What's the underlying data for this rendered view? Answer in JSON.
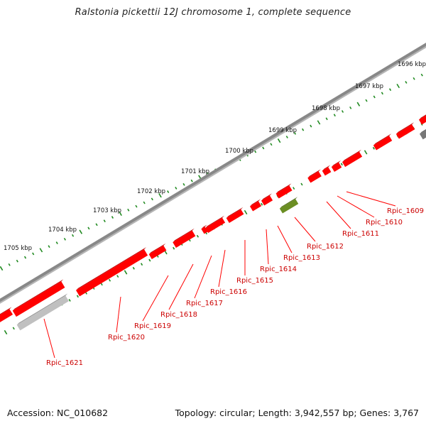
{
  "title": "Ralstonia pickettii 12J chromosome 1, complete sequence",
  "footer": {
    "accession": "Accession: NC_010682",
    "topology": "Topology: circular; Length: 3,942,557 bp; Genes: 3,767"
  },
  "ruler": {
    "labels": [
      "1696 kbp",
      "1697 kbp",
      "1698 kbp",
      "1699 kbp",
      "1700 kbp",
      "1701 kbp",
      "1702 kbp",
      "1703 kbp",
      "1704 kbp",
      "1705 kbp"
    ]
  },
  "genes": [
    {
      "label": "Rpic_1609",
      "color": "#ff0000"
    },
    {
      "label": "Rpic_1610",
      "color": "#ff0000"
    },
    {
      "label": "Rpic_1611",
      "color": "#ff0000"
    },
    {
      "label": "Rpic_1612",
      "color": "#ff0000"
    },
    {
      "label": "Rpic_1613",
      "color": "#6b8e23"
    },
    {
      "label": "Rpic_1614",
      "color": "#ff0000"
    },
    {
      "label": "Rpic_1615",
      "color": "#ff0000"
    },
    {
      "label": "Rpic_1616",
      "color": "#ff0000"
    },
    {
      "label": "Rpic_1617",
      "color": "#ff0000"
    },
    {
      "label": "Rpic_1618",
      "color": "#ff0000"
    },
    {
      "label": "Rpic_1619",
      "color": "#ff0000"
    },
    {
      "label": "Rpic_1620",
      "color": "#ff0000"
    },
    {
      "label": "Rpic_1621",
      "color": "#c0c0c0"
    }
  ],
  "colors": {
    "backbone": "#888888",
    "ruler_ticks": "#228b22",
    "label_text": "#cc0000",
    "leader_line": "#ff0000",
    "gene_forward": "#ff0000",
    "gene_grey": "#c0c0c0",
    "gene_olive": "#6b8e23",
    "gene_dark": "#777777"
  }
}
